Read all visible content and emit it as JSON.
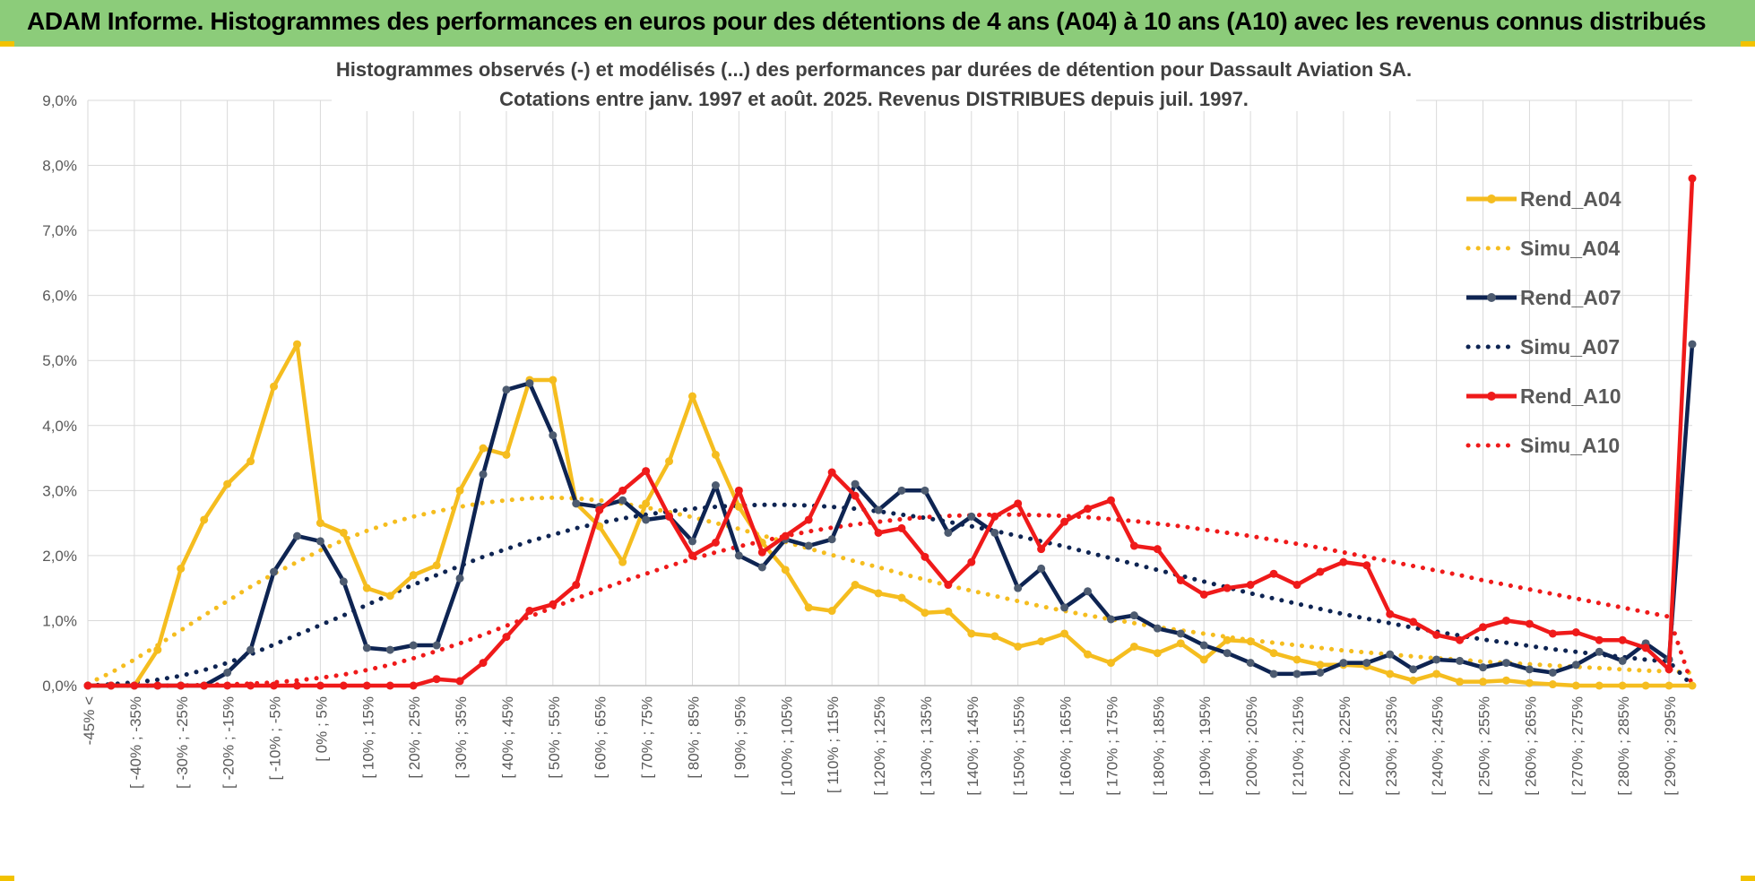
{
  "header": {
    "title": "ADAM Informe. Histogrammes des performances en euros pour des détentions de 4 ans (A04) à 10 ans (A10) avec les revenus connus distribués"
  },
  "colors": {
    "banner": "#8ccc7a",
    "A04": "#f5bd1f",
    "A07": "#0e2452",
    "A07_marker": "#4d5b70",
    "A10": "#ef1a1a"
  },
  "chart_data": {
    "type": "line",
    "title": [
      "Histogrammes observés (-) et modélisés (...) des performances par durées de détention pour Dassault Aviation SA.",
      "Cotations entre janv. 1997 et août. 2025. Revenus DISTRIBUES depuis juil. 1997."
    ],
    "xlabel": "",
    "ylabel": "",
    "ylim": [
      0,
      9
    ],
    "yticks": [
      "0,0%",
      "1,0%",
      "2,0%",
      "3,0%",
      "4,0%",
      "5,0%",
      "6,0%",
      "7,0%",
      "8,0%",
      "9,0%"
    ],
    "grid": true,
    "legend_position": "top-right",
    "x_tick_labels": [
      "-45% <",
      "[ -40% ; -35%",
      "[ -30% ; -25%",
      "[ -20% ; -15%",
      "[ -10% ; -5%",
      "[ 0% ; 5%",
      "[ 10% ; 15%",
      "[ 20% ; 25%",
      "[ 30% ; 35%",
      "[ 40% ; 45%",
      "[ 50% ; 55%",
      "[ 60% ; 65%",
      "[ 70% ; 75%",
      "[ 80% ; 85%",
      "[ 90% ; 95%",
      "[ 100% ; 105%",
      "[ 110% ; 115%",
      "[ 120% ; 125%",
      "[ 130% ; 135%",
      "[ 140% ; 145%",
      "[ 150% ; 155%",
      "[ 160% ; 165%",
      "[ 170% ; 175%",
      "[ 180% ; 185%",
      "[ 190% ; 195%",
      "[ 200% ; 205%",
      "[ 210% ; 215%",
      "[ 220% ; 225%",
      "[ 230% ; 235%",
      "[ 240% ; 245%",
      "[ 250% ; 255%",
      "[ 260% ; 265%",
      "[ 270% ; 275%",
      "[ 280% ; 285%",
      "[ 290% ; 295%"
    ],
    "series": [
      {
        "name": "Rend_A04",
        "style": "solid",
        "color": "#f5bd1f",
        "values": [
          0.0,
          0.0,
          0.0,
          0.55,
          1.8,
          2.55,
          3.1,
          3.45,
          4.6,
          5.25,
          2.5,
          2.35,
          1.5,
          1.38,
          1.7,
          1.85,
          3.0,
          3.65,
          3.55,
          4.7,
          4.7,
          2.8,
          2.45,
          1.9,
          2.8,
          3.45,
          4.45,
          3.55,
          2.75,
          2.2,
          1.78,
          1.2,
          1.15,
          1.55,
          1.42,
          1.35,
          1.12,
          1.14,
          0.8,
          0.76,
          0.6,
          0.68,
          0.8,
          0.48,
          0.35,
          0.6,
          0.5,
          0.65,
          0.4,
          0.7,
          0.68,
          0.5,
          0.4,
          0.32,
          0.32,
          0.3,
          0.18,
          0.08,
          0.18,
          0.06,
          0.06,
          0.08,
          0.04,
          0.02,
          0.0,
          0.0,
          0.0,
          0.0,
          0.0,
          0.0
        ]
      },
      {
        "name": "Simu_A04",
        "style": "dotted",
        "color": "#f5bd1f",
        "values": [
          0.03,
          0.2,
          0.4,
          0.62,
          0.85,
          1.08,
          1.3,
          1.52,
          1.72,
          1.9,
          2.08,
          2.24,
          2.38,
          2.5,
          2.6,
          2.68,
          2.75,
          2.81,
          2.85,
          2.88,
          2.89,
          2.88,
          2.85,
          2.8,
          2.74,
          2.67,
          2.59,
          2.5,
          2.41,
          2.31,
          2.21,
          2.11,
          2.01,
          1.91,
          1.82,
          1.72,
          1.63,
          1.54,
          1.46,
          1.38,
          1.3,
          1.22,
          1.15,
          1.08,
          1.02,
          0.96,
          0.9,
          0.85,
          0.8,
          0.75,
          0.7,
          0.66,
          0.62,
          0.58,
          0.54,
          0.51,
          0.48,
          0.45,
          0.42,
          0.4,
          0.37,
          0.35,
          0.33,
          0.31,
          0.29,
          0.27,
          0.25,
          0.23,
          0.22,
          0.2
        ]
      },
      {
        "name": "Rend_A07",
        "style": "solid",
        "color": "#0e2452",
        "values": [
          0.0,
          0.0,
          0.0,
          0.0,
          0.0,
          0.0,
          0.2,
          0.55,
          1.75,
          2.3,
          2.22,
          1.6,
          0.58,
          0.55,
          0.62,
          0.62,
          1.65,
          3.25,
          4.55,
          4.65,
          3.85,
          2.8,
          2.75,
          2.85,
          2.55,
          2.6,
          2.22,
          3.08,
          2.0,
          1.82,
          2.25,
          2.15,
          2.25,
          3.1,
          2.7,
          3.0,
          3.0,
          2.35,
          2.6,
          2.35,
          1.5,
          1.8,
          1.2,
          1.45,
          1.02,
          1.08,
          0.88,
          0.8,
          0.62,
          0.5,
          0.35,
          0.18,
          0.18,
          0.2,
          0.35,
          0.35,
          0.48,
          0.25,
          0.4,
          0.38,
          0.28,
          0.35,
          0.25,
          0.2,
          0.32,
          0.52,
          0.38,
          0.65,
          0.4,
          5.25
        ]
      },
      {
        "name": "Simu_A07",
        "style": "dotted",
        "color": "#0e2452",
        "values": [
          0.0,
          0.02,
          0.05,
          0.09,
          0.15,
          0.24,
          0.35,
          0.48,
          0.63,
          0.78,
          0.93,
          1.08,
          1.24,
          1.4,
          1.55,
          1.7,
          1.84,
          1.98,
          2.1,
          2.22,
          2.32,
          2.42,
          2.5,
          2.57,
          2.63,
          2.68,
          2.72,
          2.75,
          2.77,
          2.78,
          2.78,
          2.77,
          2.75,
          2.72,
          2.68,
          2.63,
          2.58,
          2.52,
          2.45,
          2.38,
          2.3,
          2.22,
          2.14,
          2.05,
          1.96,
          1.87,
          1.78,
          1.69,
          1.6,
          1.51,
          1.42,
          1.34,
          1.26,
          1.18,
          1.1,
          1.03,
          0.96,
          0.89,
          0.83,
          0.77,
          0.71,
          0.66,
          0.61,
          0.56,
          0.52,
          0.48,
          0.44,
          0.4,
          0.37,
          0.0
        ]
      },
      {
        "name": "Rend_A10",
        "style": "solid",
        "color": "#ef1a1a",
        "values": [
          0.0,
          0.0,
          0.0,
          0.0,
          0.0,
          0.0,
          0.0,
          0.0,
          0.0,
          0.0,
          0.0,
          0.0,
          0.0,
          0.0,
          0.0,
          0.1,
          0.07,
          0.35,
          0.75,
          1.15,
          1.25,
          1.55,
          2.7,
          3.0,
          3.3,
          2.6,
          2.0,
          2.2,
          3.0,
          2.05,
          2.3,
          2.55,
          3.28,
          2.92,
          2.35,
          2.42,
          1.98,
          1.55,
          1.9,
          2.6,
          2.8,
          2.1,
          2.52,
          2.72,
          2.85,
          2.15,
          2.1,
          1.62,
          1.4,
          1.5,
          1.55,
          1.72,
          1.55,
          1.75,
          1.9,
          1.85,
          1.1,
          0.98,
          0.78,
          0.7,
          0.9,
          1.0,
          0.95,
          0.8,
          0.82,
          0.7,
          0.7,
          0.58,
          0.25,
          7.8
        ]
      },
      {
        "name": "Simu_A10",
        "style": "dotted",
        "color": "#ef1a1a",
        "values": [
          0.0,
          0.0,
          0.0,
          0.0,
          0.0,
          0.01,
          0.02,
          0.03,
          0.05,
          0.08,
          0.12,
          0.17,
          0.24,
          0.32,
          0.42,
          0.53,
          0.65,
          0.78,
          0.92,
          1.06,
          1.2,
          1.34,
          1.47,
          1.6,
          1.72,
          1.84,
          1.95,
          2.05,
          2.14,
          2.22,
          2.3,
          2.37,
          2.43,
          2.48,
          2.52,
          2.56,
          2.59,
          2.61,
          2.62,
          2.63,
          2.63,
          2.62,
          2.61,
          2.59,
          2.56,
          2.53,
          2.49,
          2.45,
          2.4,
          2.35,
          2.3,
          2.24,
          2.18,
          2.12,
          2.05,
          1.98,
          1.91,
          1.84,
          1.77,
          1.7,
          1.62,
          1.55,
          1.48,
          1.41,
          1.34,
          1.27,
          1.2,
          1.13,
          1.06,
          0.0
        ]
      }
    ]
  }
}
